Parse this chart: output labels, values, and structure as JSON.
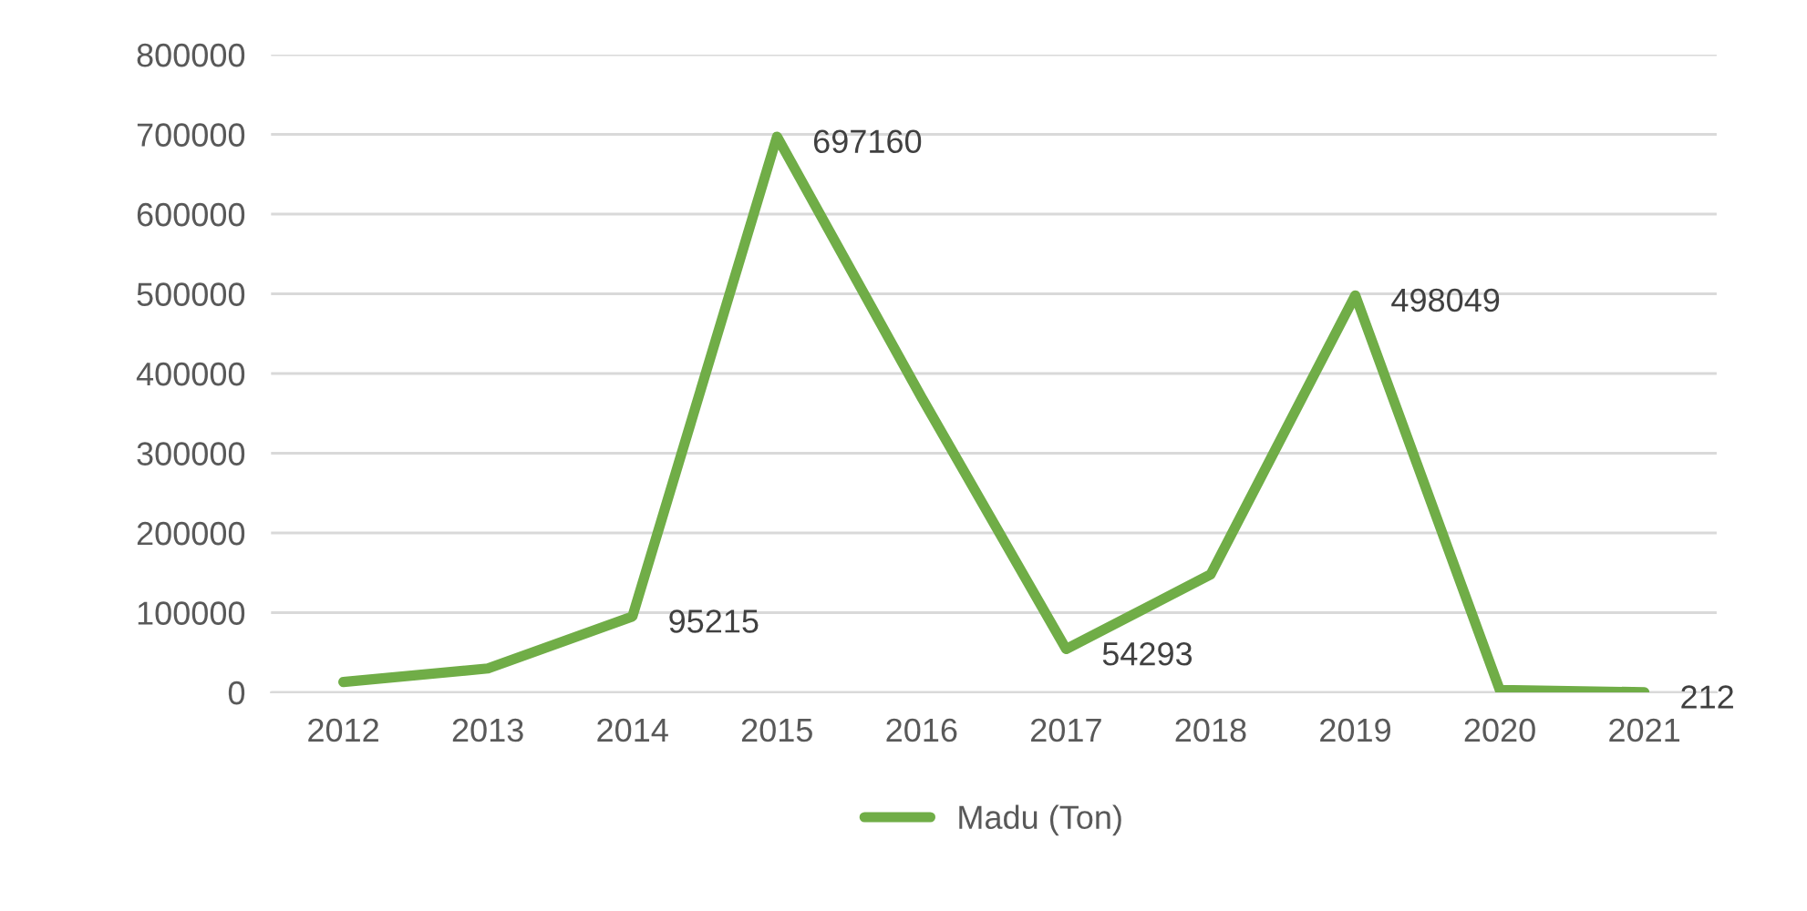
{
  "chart_data": {
    "type": "line",
    "categories": [
      "2012",
      "2013",
      "2014",
      "2015",
      "2016",
      "2017",
      "2018",
      "2019",
      "2020",
      "2021"
    ],
    "series": [
      {
        "name": "Madu (Ton)",
        "color": "#70ad47",
        "values": [
          13000,
          30000,
          95215,
          697160,
          370000,
          54293,
          148000,
          498049,
          3000,
          212
        ],
        "value_labels": [
          null,
          null,
          "95215",
          "697160",
          null,
          "54293",
          null,
          "498049",
          null,
          "212"
        ]
      }
    ],
    "ylim": [
      0,
      800000
    ],
    "yticks": [
      0,
      100000,
      200000,
      300000,
      400000,
      500000,
      600000,
      700000,
      800000
    ],
    "grid": "y",
    "legend": "bottom",
    "marker": "none",
    "line_style": "solid"
  }
}
